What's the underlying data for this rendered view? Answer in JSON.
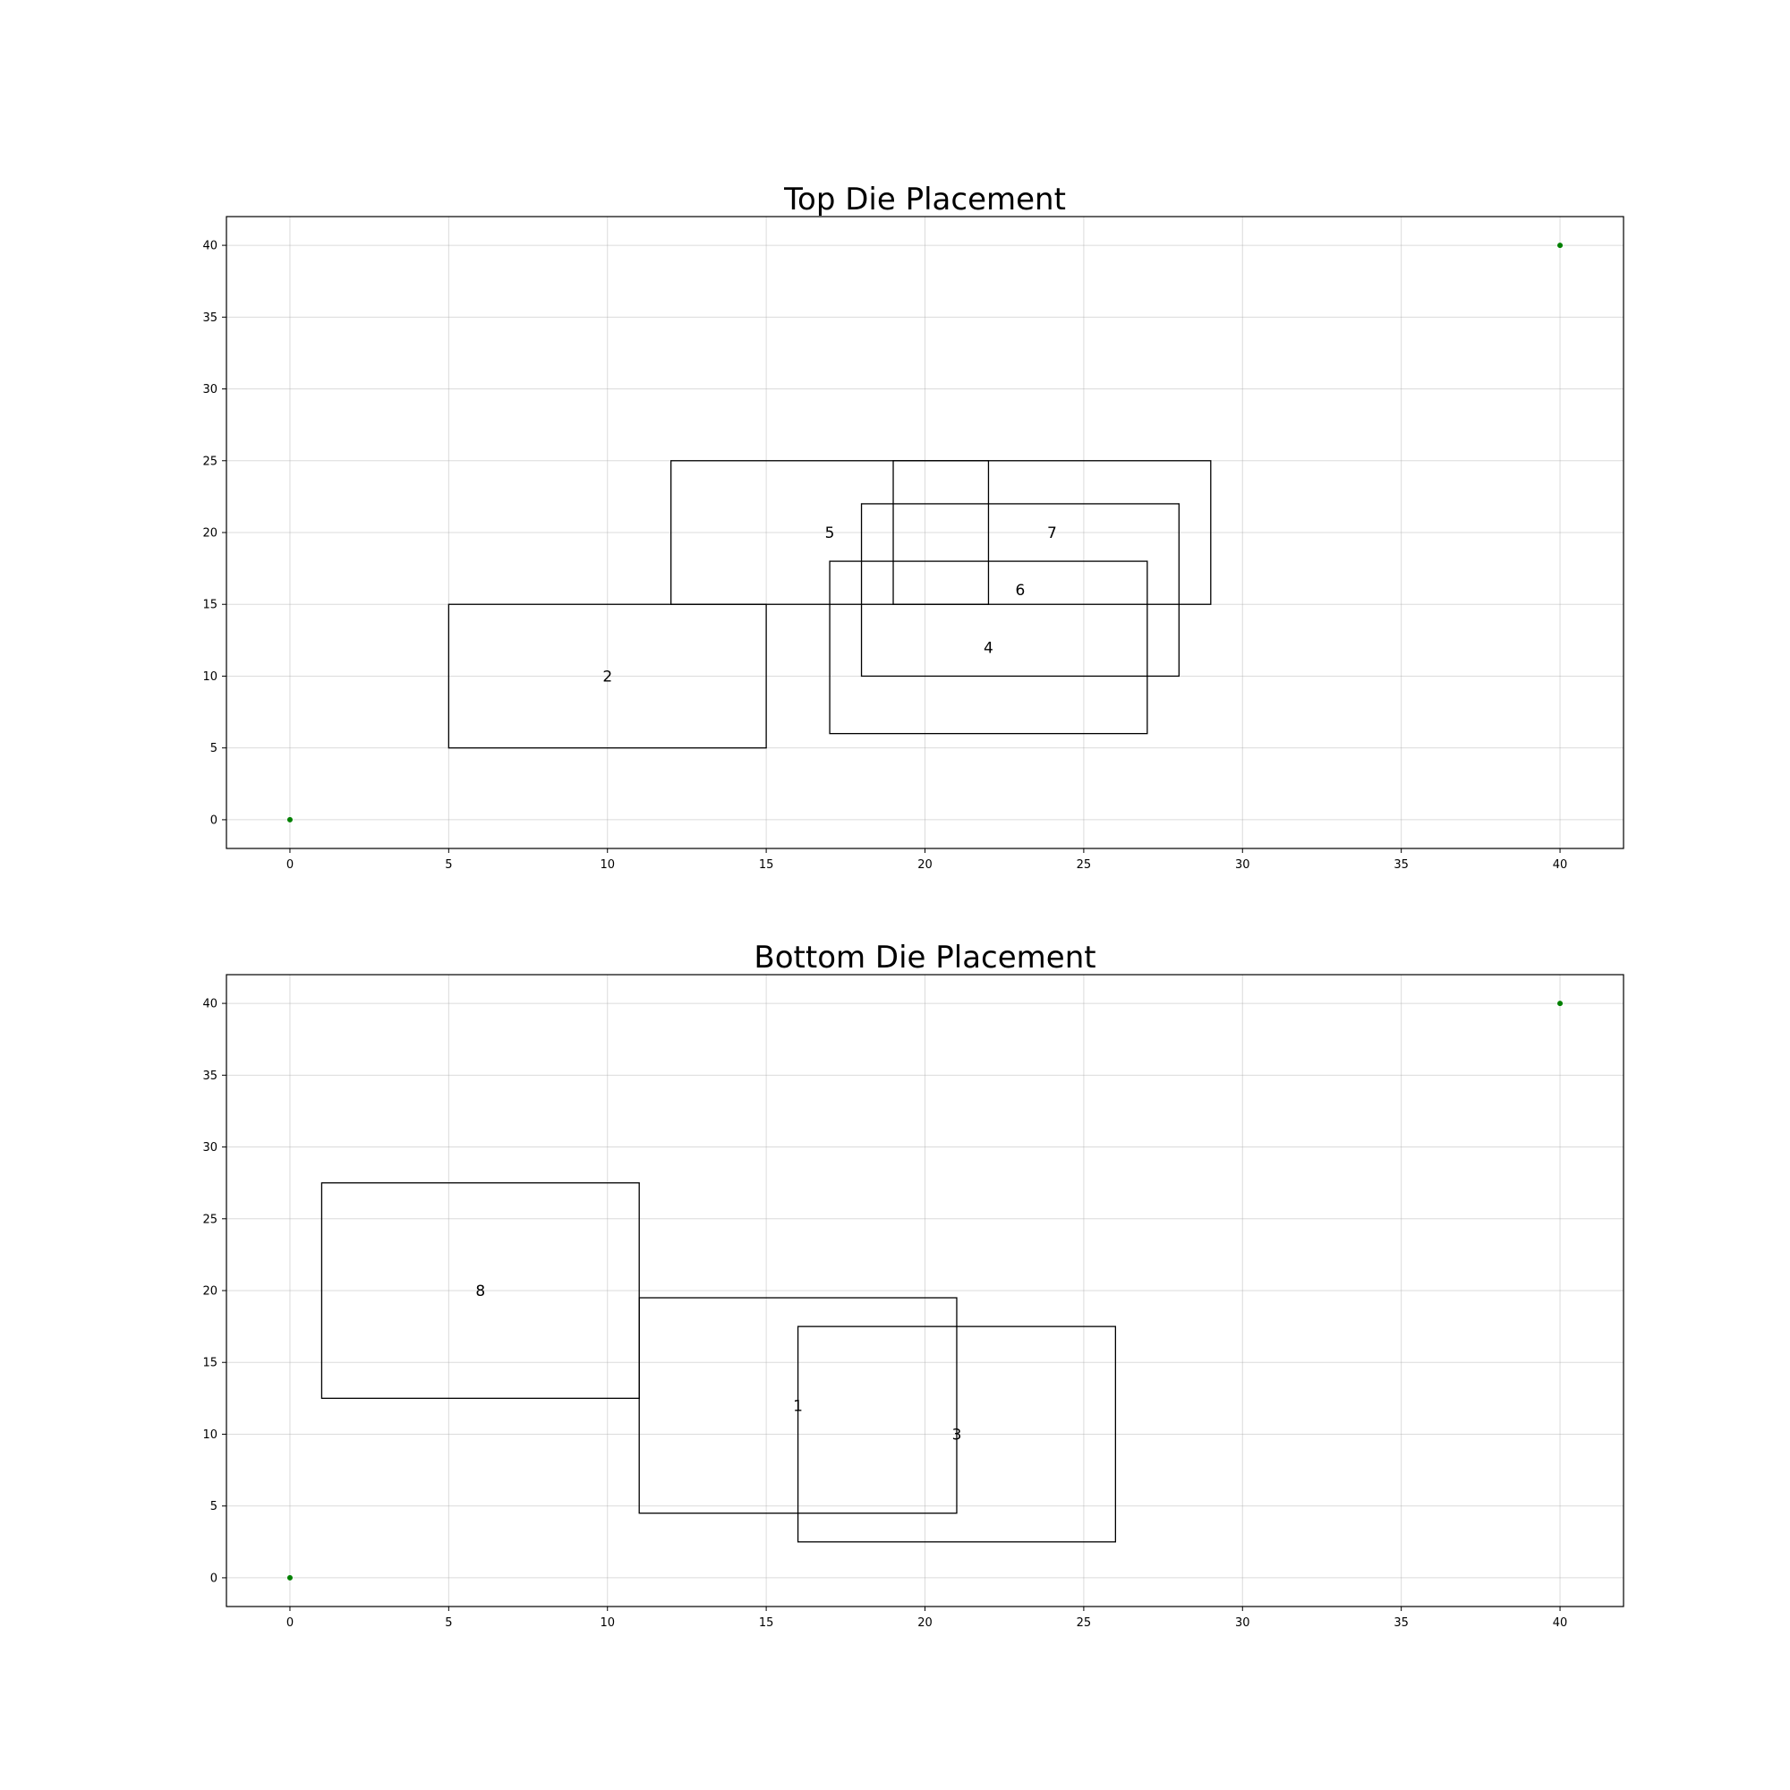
{
  "chart_data": [
    {
      "type": "rectangle-placement",
      "title": "Top Die Placement",
      "xlabel": "",
      "ylabel": "",
      "xlim": [
        -2,
        42
      ],
      "ylim": [
        -2,
        42
      ],
      "xticks": [
        0,
        5,
        10,
        15,
        20,
        25,
        30,
        35,
        40
      ],
      "yticks": [
        0,
        5,
        10,
        15,
        20,
        25,
        30,
        35,
        40
      ],
      "grid": true,
      "corner_points": {
        "color": "#008000",
        "points": [
          [
            0,
            0
          ],
          [
            40,
            40
          ]
        ]
      },
      "rectangles": [
        {
          "label": "2",
          "x0": 5,
          "y0": 5,
          "x1": 15,
          "y1": 15
        },
        {
          "label": "5",
          "x0": 12,
          "y0": 15,
          "x1": 22,
          "y1": 25
        },
        {
          "label": "7",
          "x0": 19,
          "y0": 15,
          "x1": 29,
          "y1": 25
        },
        {
          "label": "6",
          "x0": 18,
          "y0": 10,
          "x1": 28,
          "y1": 22
        },
        {
          "label": "4",
          "x0": 17,
          "y0": 6,
          "x1": 27,
          "y1": 18
        }
      ]
    },
    {
      "type": "rectangle-placement",
      "title": "Bottom Die Placement",
      "xlabel": "",
      "ylabel": "",
      "xlim": [
        -2,
        42
      ],
      "ylim": [
        -2,
        42
      ],
      "xticks": [
        0,
        5,
        10,
        15,
        20,
        25,
        30,
        35,
        40
      ],
      "yticks": [
        0,
        5,
        10,
        15,
        20,
        25,
        30,
        35,
        40
      ],
      "grid": true,
      "corner_points": {
        "color": "#008000",
        "points": [
          [
            0,
            0
          ],
          [
            40,
            40
          ]
        ]
      },
      "rectangles": [
        {
          "label": "8",
          "x0": 1,
          "y0": 12.5,
          "x1": 11,
          "y1": 27.5
        },
        {
          "label": "1",
          "x0": 11,
          "y0": 4.5,
          "x1": 21,
          "y1": 19.5
        },
        {
          "label": "3",
          "x0": 16,
          "y0": 2.5,
          "x1": 26,
          "y1": 17.5
        }
      ]
    }
  ]
}
